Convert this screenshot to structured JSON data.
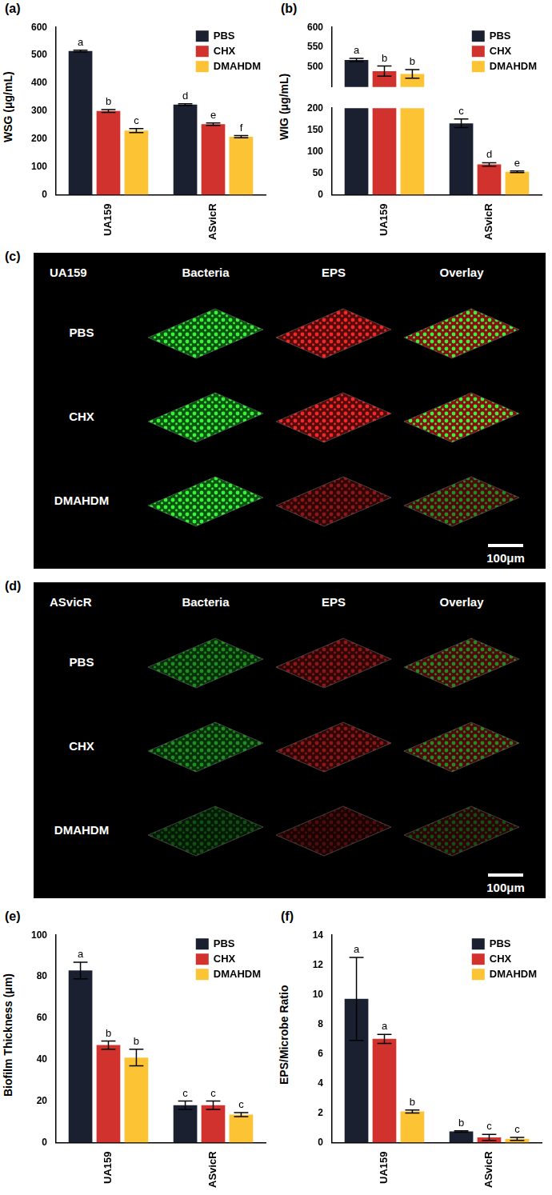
{
  "chart_data": [
    {
      "panel": "(a)",
      "type": "bar",
      "y_label": "WSG (μg/mL)",
      "categories": [
        "UA159",
        "ASvicR"
      ],
      "ylim": [
        0,
        600
      ],
      "yticks": [
        0,
        100,
        200,
        300,
        400,
        500,
        600
      ],
      "grid": false,
      "legend": "top-right",
      "series": [
        {
          "name": "PBS",
          "color": "#1b2030",
          "values": [
            515,
            323
          ],
          "errors": [
            3,
            3
          ],
          "letters": [
            "a",
            "d"
          ]
        },
        {
          "name": "CHX",
          "color": "#d2322d",
          "values": [
            300,
            253
          ],
          "errors": [
            5,
            4
          ],
          "letters": [
            "b",
            "e"
          ]
        },
        {
          "name": "DMAHDM",
          "color": "#fcc334",
          "values": [
            230,
            208
          ],
          "errors": [
            7,
            4
          ],
          "letters": [
            "c",
            "f"
          ]
        }
      ]
    },
    {
      "panel": "(b)",
      "type": "bar",
      "y_label": "WIG (μg/mL)",
      "categories": [
        "UA159",
        "ASvicR"
      ],
      "ylim": [
        [
          0,
          200
        ],
        [
          450,
          600
        ]
      ],
      "yticks": [
        [
          0,
          50,
          100,
          150,
          200
        ],
        [
          500,
          550,
          600
        ]
      ],
      "grid": false,
      "legend": "top-right",
      "series": [
        {
          "name": "PBS",
          "color": "#1b2030",
          "values": [
            518,
            165
          ],
          "errors": [
            4,
            10
          ],
          "letters": [
            "a",
            "c"
          ]
        },
        {
          "name": "CHX",
          "color": "#d2322d",
          "values": [
            490,
            70
          ],
          "errors": [
            13,
            4
          ],
          "letters": [
            "b",
            "d"
          ]
        },
        {
          "name": "DMAHDM",
          "color": "#fcc334",
          "values": [
            483,
            53
          ],
          "errors": [
            11,
            2
          ],
          "letters": [
            "b",
            "e"
          ]
        }
      ]
    },
    {
      "panel": "(e)",
      "type": "bar",
      "y_label": "Biofilm Thickness (μm)",
      "categories": [
        "UA159",
        "ASvicR"
      ],
      "ylim": [
        0,
        100
      ],
      "yticks": [
        0,
        20,
        40,
        60,
        80,
        100
      ],
      "grid": false,
      "legend": "top-right",
      "series": [
        {
          "name": "PBS",
          "color": "#1b2030",
          "values": [
            83,
            18
          ],
          "errors": [
            4,
            2
          ],
          "letters": [
            "a",
            "c"
          ]
        },
        {
          "name": "CHX",
          "color": "#d2322d",
          "values": [
            47,
            18
          ],
          "errors": [
            2,
            2
          ],
          "letters": [
            "b",
            "c"
          ]
        },
        {
          "name": "DMAHDM",
          "color": "#fcc334",
          "values": [
            41,
            13.5
          ],
          "errors": [
            4,
            1
          ],
          "letters": [
            "b",
            "c"
          ]
        }
      ]
    },
    {
      "panel": "(f)",
      "type": "bar",
      "y_label": "EPS/Microbe Ratio",
      "categories": [
        "UA159",
        "ASvicR"
      ],
      "ylim": [
        0,
        14
      ],
      "yticks": [
        0,
        2,
        4,
        6,
        8,
        10,
        12,
        14
      ],
      "grid": false,
      "legend": "top-right",
      "series": [
        {
          "name": "PBS",
          "color": "#1b2030",
          "values": [
            9.7,
            0.75
          ],
          "errors": [
            2.8,
            0.05
          ],
          "letters": [
            "a",
            "b"
          ]
        },
        {
          "name": "CHX",
          "color": "#d2322d",
          "values": [
            7.0,
            0.35
          ],
          "errors": [
            0.3,
            0.2
          ],
          "letters": [
            "a",
            "c"
          ]
        },
        {
          "name": "DMAHDM",
          "color": "#fcc334",
          "values": [
            2.1,
            0.25
          ],
          "errors": [
            0.1,
            0.1
          ],
          "letters": [
            "b",
            "c"
          ]
        }
      ]
    }
  ],
  "micrographs": [
    {
      "panel": "(c)",
      "strain": "UA159",
      "columns": [
        "Bacteria",
        "EPS",
        "Overlay"
      ],
      "rows": [
        "PBS",
        "CHX",
        "DMAHDM"
      ],
      "scale_bar": "100μm"
    },
    {
      "panel": "(d)",
      "strain": "ASvicR",
      "columns": [
        "Bacteria",
        "EPS",
        "Overlay"
      ],
      "rows": [
        "PBS",
        "CHX",
        "DMAHDM"
      ],
      "scale_bar": "100μm"
    }
  ]
}
